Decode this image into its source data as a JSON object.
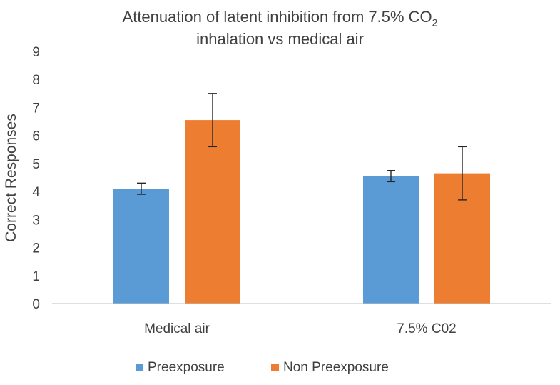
{
  "chart_data": {
    "type": "bar",
    "title": {
      "line1": "Attenuation of latent inhibition from 7.5% CO",
      "line1_subscript": "2",
      "line2": "inhalation vs medical air"
    },
    "xlabel": "",
    "ylabel": "Correct Responses",
    "ylim": [
      0,
      9
    ],
    "yticks": [
      "0",
      "1",
      "2",
      "3",
      "4",
      "5",
      "6",
      "7",
      "8",
      "9"
    ],
    "categories": [
      "Medical air",
      "7.5% C02"
    ],
    "grid": false,
    "legend_position": "bottom",
    "series": [
      {
        "name": "Preexposure",
        "color": "#5B9BD5",
        "values": [
          4.1,
          4.55
        ],
        "errors": [
          0.2,
          0.2
        ]
      },
      {
        "name": "Non Preexposure",
        "color": "#ED7D31",
        "values": [
          6.55,
          4.65
        ],
        "errors": [
          0.95,
          0.95
        ]
      }
    ]
  }
}
